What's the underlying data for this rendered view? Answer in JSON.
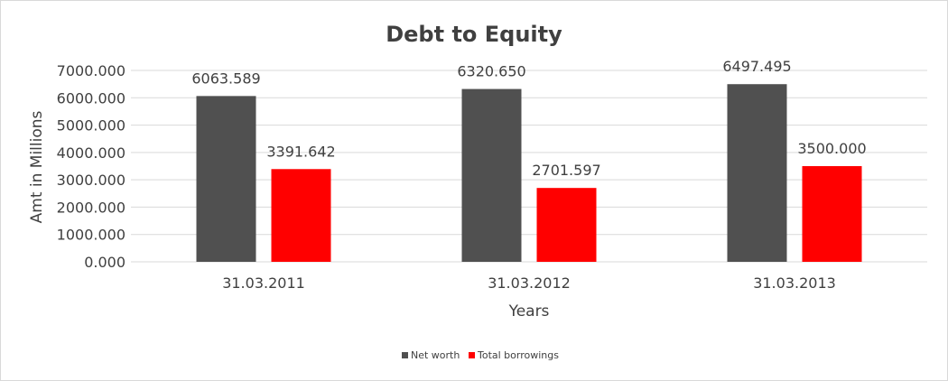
{
  "chart_data": {
    "type": "bar",
    "title": "Debt to Equity",
    "xlabel": "Years",
    "ylabel": "Amt in Millions",
    "categories": [
      "31.03.2011",
      "31.03.2012",
      "31.03.2013"
    ],
    "series": [
      {
        "name": "Net worth",
        "values": [
          6063.589,
          6320.65,
          6497.495
        ],
        "labels": [
          "6063.589",
          "6320.650",
          "6497.495"
        ],
        "color": "#505050"
      },
      {
        "name": "Total borrowings",
        "values": [
          3391.642,
          2701.597,
          3500.0
        ],
        "labels": [
          "3391.642",
          "2701.597",
          "3500.000"
        ],
        "color": "#ff0000"
      }
    ],
    "ylim": [
      0,
      7000
    ],
    "yticks": [
      0,
      1000,
      2000,
      3000,
      4000,
      5000,
      6000,
      7000
    ],
    "ytick_labels": [
      "0.000",
      "1000.000",
      "2000.000",
      "3000.000",
      "4000.000",
      "5000.000",
      "6000.000",
      "7000.000"
    ],
    "grid": true,
    "legend_position": "bottom"
  }
}
